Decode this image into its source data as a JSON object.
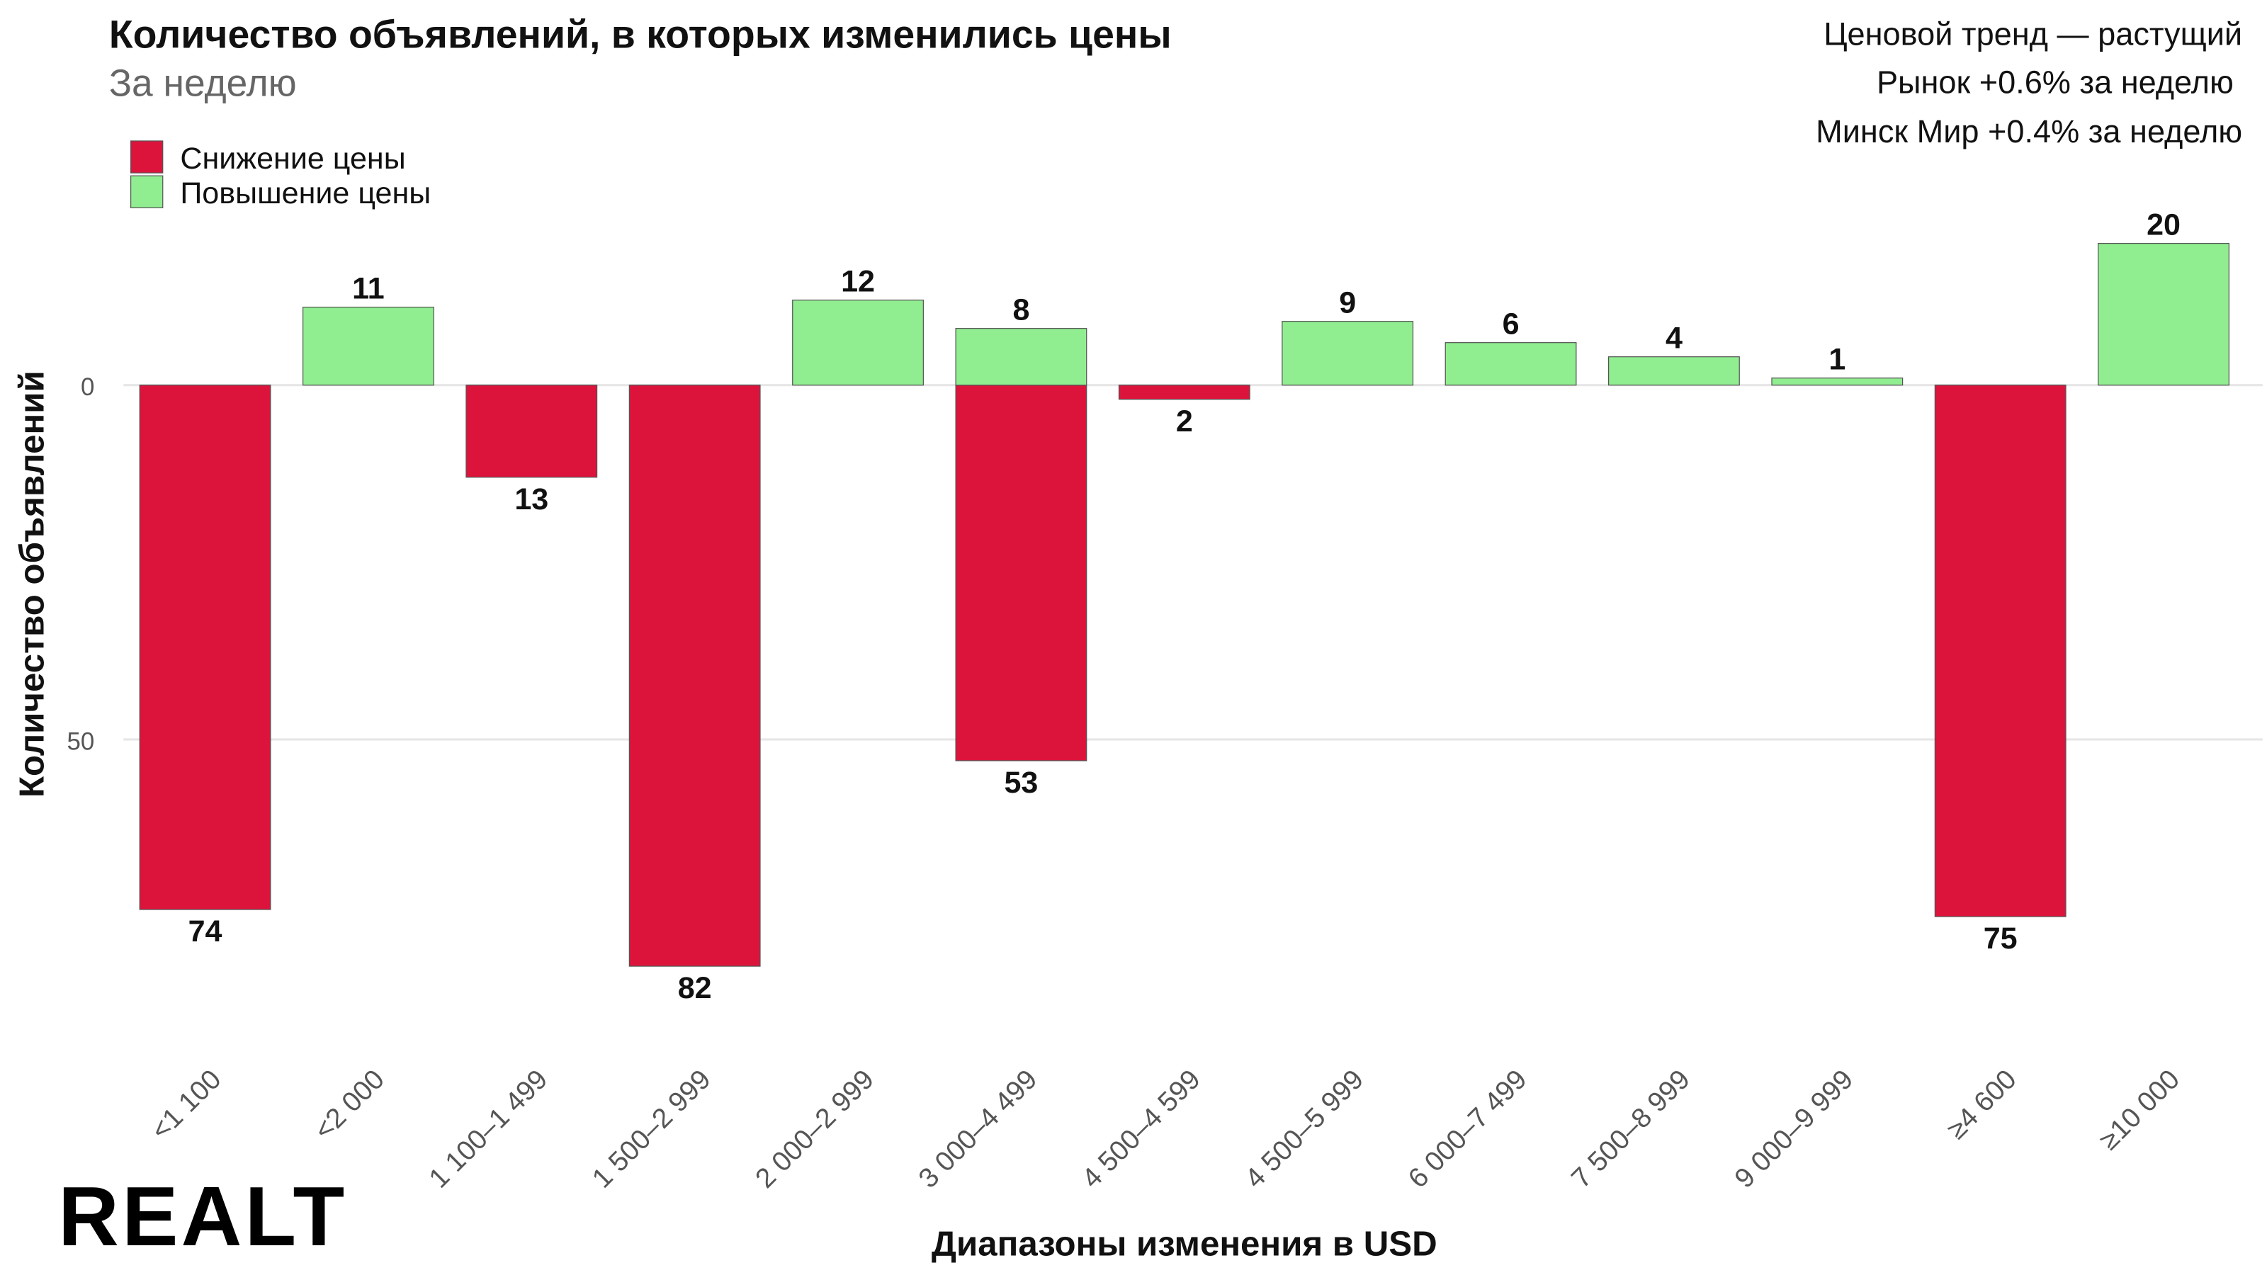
{
  "chart_data": {
    "type": "diverging-bar",
    "title": "Количество объявлений, в которых изменились цены",
    "subtitle": "За неделю",
    "annotations": [
      "Ценовой тренд — растущий",
      "Рынок +0.6% за неделю",
      "Минск Мир +0.4% за неделю"
    ],
    "logo": "REALT",
    "x_label": "Диапазоны изменения в USD",
    "y_label": "Количество объявлений",
    "categories": [
      "<1 100",
      "<2 000",
      "1 100–1 499",
      "1 500–2 999",
      "2 000–2 999",
      "3 000–4 499",
      "4 500–4 599",
      "4 500–5 999",
      "6 000–7 499",
      "7 500–8 999",
      "9 000–9 999",
      "≥4 600",
      "≥10 000"
    ],
    "series": [
      {
        "name": "Снижение цены",
        "color": "#dc143c",
        "direction": "down",
        "values": [
          74,
          null,
          13,
          82,
          null,
          53,
          2,
          null,
          null,
          null,
          null,
          75,
          null
        ]
      },
      {
        "name": "Повышение цены",
        "color": "#90ee90",
        "direction": "up",
        "values": [
          null,
          11,
          null,
          null,
          12,
          8,
          null,
          9,
          6,
          4,
          1,
          null,
          20
        ]
      }
    ],
    "ylim": [
      -24,
      90
    ],
    "yticks": [
      0,
      50
    ],
    "y_increases_downward": true,
    "grid": true,
    "legend": "top-left"
  }
}
